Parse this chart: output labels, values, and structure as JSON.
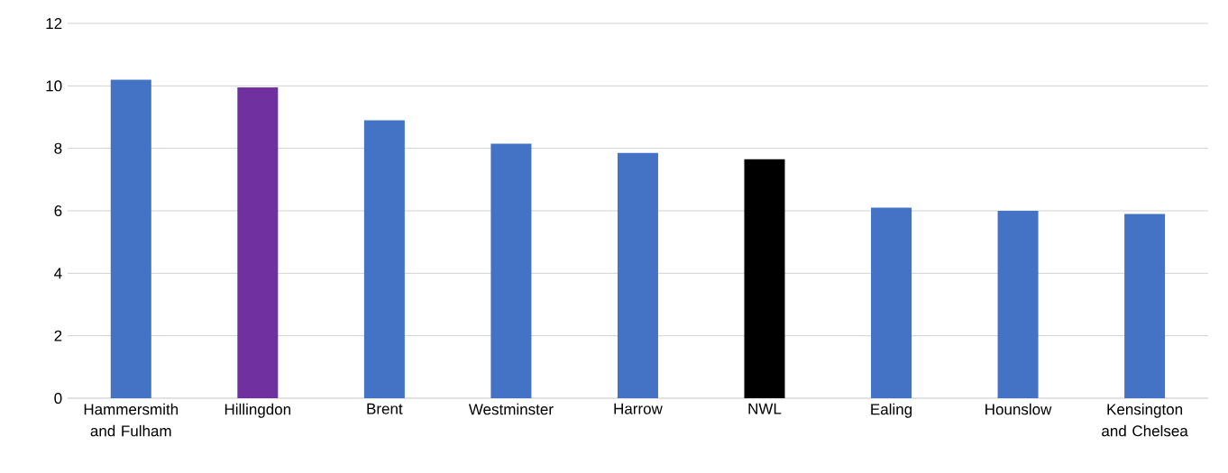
{
  "chart_data": {
    "type": "bar",
    "categories": [
      "Hammersmith and Fulham",
      "Hillingdon",
      "Brent",
      "Westminster",
      "Harrow",
      "NWL",
      "Ealing",
      "Hounslow",
      "Kensington and Chelsea"
    ],
    "values": [
      10.2,
      9.95,
      8.9,
      8.15,
      7.85,
      7.65,
      6.1,
      6.0,
      5.9
    ],
    "colors": [
      "#4472c4",
      "#7030a0",
      "#4472c4",
      "#4472c4",
      "#4472c4",
      "#000000",
      "#4472c4",
      "#4472c4",
      "#4472c4"
    ],
    "ylim": [
      0,
      12
    ],
    "yticks": [
      0,
      2,
      4,
      6,
      8,
      10,
      12
    ],
    "grid": "y"
  }
}
